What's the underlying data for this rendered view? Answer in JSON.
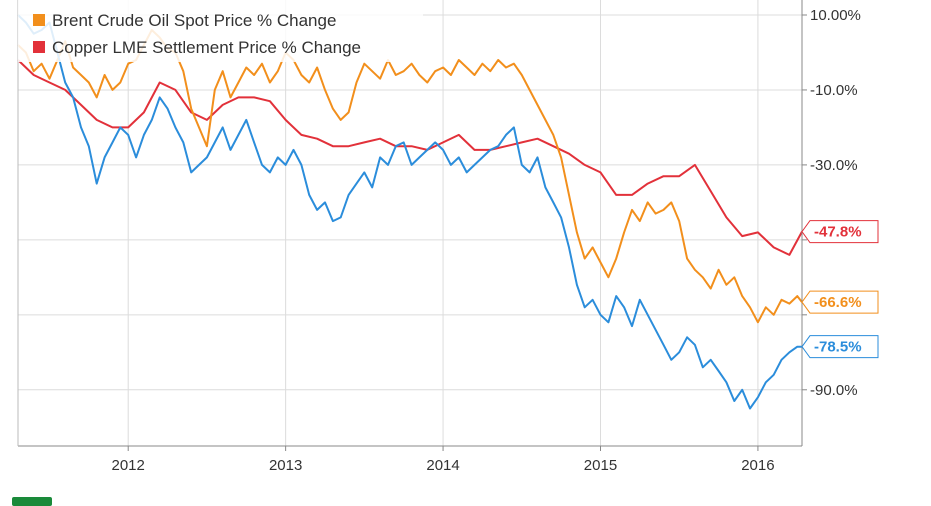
{
  "chart_data": {
    "type": "line",
    "title": "",
    "xlabel": "",
    "ylabel": "",
    "x_ticks": [
      "2012",
      "2013",
      "2014",
      "2015",
      "2016"
    ],
    "y_ticks": [
      {
        "value": 10,
        "label": "10.00%"
      },
      {
        "value": -10,
        "label": "-10.0%"
      },
      {
        "value": -30,
        "label": "-30.0%"
      },
      {
        "value": -50,
        "label": ""
      },
      {
        "value": -70,
        "label": ""
      },
      {
        "value": -90,
        "label": "-90.0%"
      }
    ],
    "ylim": [
      -105,
      14
    ],
    "xlim": [
      2011.3,
      2016.28
    ],
    "grid": true,
    "legend_position": "top-left",
    "series": [
      {
        "name": "Brent Crude Oil Spot Price % Change",
        "color": "#f28f1c",
        "end_label": "-66.6%",
        "x": [
          2011.3,
          2011.35,
          2011.4,
          2011.45,
          2011.5,
          2011.55,
          2011.6,
          2011.65,
          2011.7,
          2011.75,
          2011.8,
          2011.85,
          2011.9,
          2011.95,
          2012.0,
          2012.05,
          2012.1,
          2012.15,
          2012.2,
          2012.25,
          2012.3,
          2012.35,
          2012.4,
          2012.45,
          2012.5,
          2012.55,
          2012.6,
          2012.65,
          2012.7,
          2012.75,
          2012.8,
          2012.85,
          2012.9,
          2012.95,
          2013.0,
          2013.05,
          2013.1,
          2013.15,
          2013.2,
          2013.25,
          2013.3,
          2013.35,
          2013.4,
          2013.45,
          2013.5,
          2013.55,
          2013.6,
          2013.65,
          2013.7,
          2013.75,
          2013.8,
          2013.85,
          2013.9,
          2013.95,
          2014.0,
          2014.05,
          2014.1,
          2014.15,
          2014.2,
          2014.25,
          2014.3,
          2014.35,
          2014.4,
          2014.45,
          2014.5,
          2014.55,
          2014.6,
          2014.65,
          2014.7,
          2014.75,
          2014.8,
          2014.85,
          2014.9,
          2014.95,
          2015.0,
          2015.05,
          2015.1,
          2015.15,
          2015.2,
          2015.25,
          2015.3,
          2015.35,
          2015.4,
          2015.45,
          2015.5,
          2015.55,
          2015.6,
          2015.65,
          2015.7,
          2015.75,
          2015.8,
          2015.85,
          2015.9,
          2015.95,
          2016.0,
          2016.05,
          2016.1,
          2016.15,
          2016.2,
          2016.25,
          2016.28
        ],
        "y": [
          2,
          0,
          -5,
          -3,
          -7,
          -2,
          3,
          -4,
          -6,
          -8,
          -12,
          -6,
          -10,
          -8,
          -3,
          -2,
          2,
          6,
          4,
          1,
          0,
          -5,
          -15,
          -20,
          -25,
          -10,
          -5,
          -12,
          -8,
          -4,
          -6,
          -3,
          -8,
          -5,
          0,
          -2,
          -6,
          -8,
          -4,
          -10,
          -15,
          -18,
          -16,
          -8,
          -3,
          -5,
          -7,
          -2,
          -6,
          -5,
          -3,
          -6,
          -8,
          -5,
          -4,
          -6,
          -2,
          -4,
          -6,
          -3,
          -5,
          -2,
          -4,
          -3,
          -6,
          -10,
          -14,
          -18,
          -22,
          -28,
          -38,
          -48,
          -55,
          -52,
          -56,
          -60,
          -55,
          -48,
          -42,
          -45,
          -40,
          -43,
          -42,
          -40,
          -45,
          -55,
          -58,
          -60,
          -63,
          -58,
          -62,
          -60,
          -65,
          -68,
          -72,
          -68,
          -70,
          -66,
          -67,
          -65,
          -66.6
        ]
      },
      {
        "name": "Copper LME Settlement Price % Change",
        "color": "#e2313a",
        "end_label": "-47.8%",
        "x": [
          2011.3,
          2011.4,
          2011.5,
          2011.6,
          2011.7,
          2011.8,
          2011.9,
          2012.0,
          2012.1,
          2012.2,
          2012.3,
          2012.4,
          2012.5,
          2012.6,
          2012.7,
          2012.8,
          2012.9,
          2013.0,
          2013.1,
          2013.2,
          2013.3,
          2013.4,
          2013.5,
          2013.6,
          2013.7,
          2013.8,
          2013.9,
          2014.0,
          2014.1,
          2014.2,
          2014.3,
          2014.4,
          2014.5,
          2014.6,
          2014.7,
          2014.8,
          2014.9,
          2015.0,
          2015.1,
          2015.2,
          2015.3,
          2015.4,
          2015.5,
          2015.6,
          2015.7,
          2015.8,
          2015.9,
          2016.0,
          2016.1,
          2016.2,
          2016.28
        ],
        "y": [
          -2,
          -6,
          -8,
          -10,
          -14,
          -18,
          -20,
          -20,
          -16,
          -8,
          -10,
          -16,
          -18,
          -14,
          -12,
          -12,
          -13,
          -18,
          -22,
          -23,
          -25,
          -25,
          -24,
          -23,
          -25,
          -25,
          -26,
          -24,
          -22,
          -26,
          -26,
          -25,
          -24,
          -23,
          -25,
          -27,
          -30,
          -32,
          -38,
          -38,
          -35,
          -33,
          -33,
          -30,
          -37,
          -44,
          -49,
          -48,
          -52,
          -54,
          -47.8
        ]
      },
      {
        "name": "",
        "color": "#2b8ddb",
        "end_label": "-78.5%",
        "x": [
          2011.3,
          2011.35,
          2011.4,
          2011.45,
          2011.5,
          2011.55,
          2011.6,
          2011.65,
          2011.7,
          2011.75,
          2011.8,
          2011.85,
          2011.9,
          2011.95,
          2012.0,
          2012.05,
          2012.1,
          2012.15,
          2012.2,
          2012.25,
          2012.3,
          2012.35,
          2012.4,
          2012.45,
          2012.5,
          2012.55,
          2012.6,
          2012.65,
          2012.7,
          2012.75,
          2012.8,
          2012.85,
          2012.9,
          2012.95,
          2013.0,
          2013.05,
          2013.1,
          2013.15,
          2013.2,
          2013.25,
          2013.3,
          2013.35,
          2013.4,
          2013.45,
          2013.5,
          2013.55,
          2013.6,
          2013.65,
          2013.7,
          2013.75,
          2013.8,
          2013.85,
          2013.9,
          2013.95,
          2014.0,
          2014.05,
          2014.1,
          2014.15,
          2014.2,
          2014.25,
          2014.3,
          2014.35,
          2014.4,
          2014.45,
          2014.5,
          2014.55,
          2014.6,
          2014.65,
          2014.7,
          2014.75,
          2014.8,
          2014.85,
          2014.9,
          2014.95,
          2015.0,
          2015.05,
          2015.1,
          2015.15,
          2015.2,
          2015.25,
          2015.3,
          2015.35,
          2015.4,
          2015.45,
          2015.5,
          2015.55,
          2015.6,
          2015.65,
          2015.7,
          2015.75,
          2015.8,
          2015.85,
          2015.9,
          2015.95,
          2016.0,
          2016.05,
          2016.1,
          2016.15,
          2016.2,
          2016.25,
          2016.28
        ],
        "y": [
          10,
          8,
          5,
          6,
          8,
          0,
          -8,
          -12,
          -20,
          -25,
          -35,
          -28,
          -24,
          -20,
          -22,
          -28,
          -22,
          -18,
          -12,
          -15,
          -20,
          -24,
          -32,
          -30,
          -28,
          -24,
          -20,
          -26,
          -22,
          -18,
          -24,
          -30,
          -32,
          -28,
          -30,
          -26,
          -30,
          -38,
          -42,
          -40,
          -45,
          -44,
          -38,
          -35,
          -32,
          -36,
          -28,
          -30,
          -25,
          -24,
          -30,
          -28,
          -26,
          -24,
          -26,
          -30,
          -28,
          -32,
          -30,
          -28,
          -26,
          -25,
          -22,
          -20,
          -30,
          -32,
          -28,
          -36,
          -40,
          -44,
          -52,
          -62,
          -68,
          -66,
          -70,
          -72,
          -65,
          -68,
          -73,
          -66,
          -70,
          -74,
          -78,
          -82,
          -80,
          -76,
          -78,
          -84,
          -82,
          -85,
          -88,
          -93,
          -90,
          -95,
          -92,
          -88,
          -86,
          -82,
          -80,
          -78.5,
          -78.5
        ]
      }
    ]
  },
  "legend": {
    "items": [
      {
        "label": "Brent Crude Oil Spot Price % Change",
        "color": "#f28f1c"
      },
      {
        "label": "Copper LME Settlement Price % Change",
        "color": "#e2313a"
      }
    ]
  }
}
